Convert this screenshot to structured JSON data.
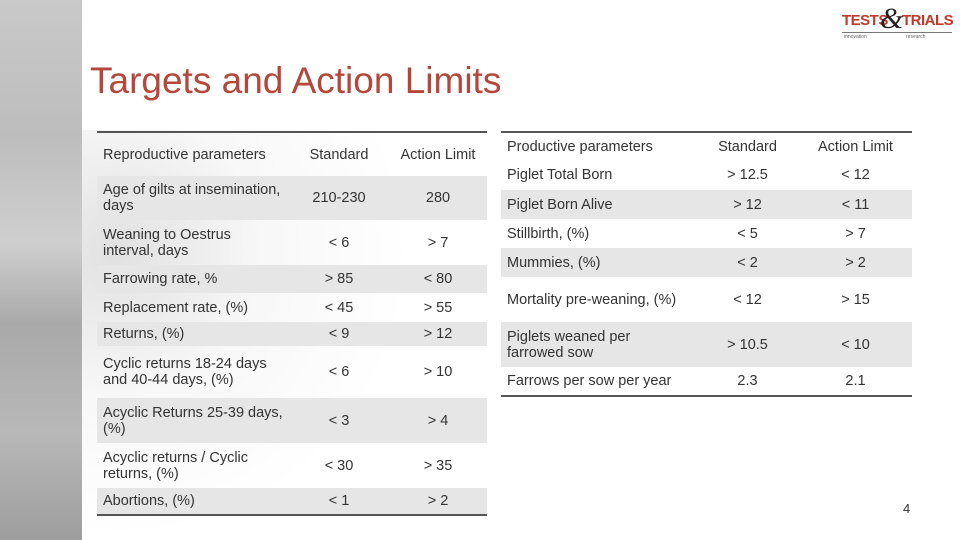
{
  "title": "Targets and Action Limits",
  "logo": {
    "part1": "TESTS",
    "amp": "&",
    "part2": "TRIALS",
    "sub1": "innovation",
    "sub2": "research"
  },
  "left_table": {
    "headers": [
      "Reproductive parameters",
      "Standard",
      "Action Limit"
    ],
    "rows": [
      [
        "Age of gilts at insemination,  days",
        "210-230",
        "280"
      ],
      [
        "Weaning to Oestrus interval, days",
        "< 6",
        "> 7"
      ],
      [
        "Farrowing rate, %",
        "> 85",
        "< 80"
      ],
      [
        "Replacement rate, (%)",
        "< 45",
        "> 55"
      ],
      [
        "Returns, (%)",
        "< 9",
        "> 12"
      ],
      [
        "Cyclic returns 18-24 days and 40-44 days, (%)",
        "< 6",
        "> 10"
      ],
      [
        "Acyclic Returns 25-39 days, (%)",
        "< 3",
        "> 4"
      ],
      [
        "Acyclic returns / Cyclic returns, (%)",
        "< 30",
        "> 35"
      ],
      [
        "Abortions, (%)",
        "< 1",
        "> 2"
      ]
    ]
  },
  "right_table": {
    "headers": [
      "Productive parameters",
      "Standard",
      "Action Limit"
    ],
    "rows": [
      [
        "Piglet  Total Born",
        "> 12.5",
        "< 12"
      ],
      [
        "Piglet Born Alive",
        "> 12",
        "< 11"
      ],
      [
        "Stillbirth, (%)",
        "< 5",
        "> 7"
      ],
      [
        "Mummies, (%)",
        "< 2",
        "> 2"
      ],
      [
        "Mortality pre-weaning, (%)",
        "< 12",
        "> 15"
      ],
      [
        "Piglets weaned per farrowed sow",
        "> 10.5",
        "< 10"
      ],
      [
        "Farrows per sow per year",
        "2.3",
        "2.1"
      ]
    ]
  },
  "page_number": "4"
}
